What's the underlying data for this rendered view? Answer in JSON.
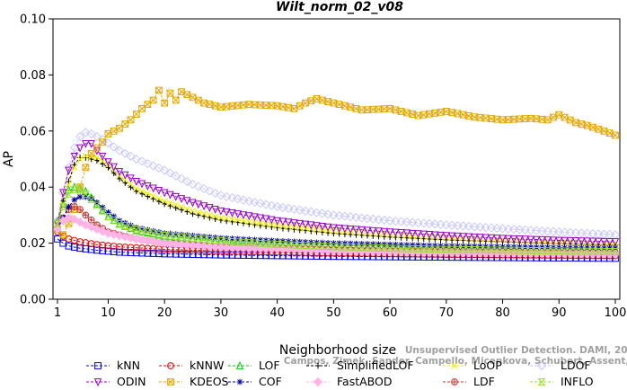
{
  "chart_data": {
    "type": "line",
    "title": "Wilt_norm_02_v08",
    "xlabel": "Neighborhood size",
    "ylabel": "AP",
    "xlim": [
      1,
      100
    ],
    "ylim": [
      0.0,
      0.1
    ],
    "xticks": [
      1,
      10,
      20,
      30,
      40,
      50,
      60,
      70,
      80,
      90,
      100
    ],
    "yticks": [
      "0.00",
      "0.02",
      "0.04",
      "0.06",
      "0.08",
      "0.10"
    ],
    "grid": false,
    "legend_position": "bottom",
    "x": [
      1,
      2,
      3,
      4,
      5,
      6,
      7,
      8,
      9,
      10,
      11,
      12,
      13,
      14,
      15,
      16,
      17,
      18,
      19,
      20,
      21,
      22,
      23,
      24,
      25,
      26,
      27,
      28,
      29,
      30,
      31,
      32,
      33,
      34,
      35,
      36,
      37,
      38,
      39,
      40,
      41,
      42,
      43,
      44,
      45,
      46,
      47,
      48,
      49,
      50,
      51,
      52,
      53,
      54,
      55,
      56,
      57,
      58,
      59,
      60,
      61,
      62,
      63,
      64,
      65,
      66,
      67,
      68,
      69,
      70,
      71,
      72,
      73,
      74,
      75,
      76,
      77,
      78,
      79,
      80,
      81,
      82,
      83,
      84,
      85,
      86,
      87,
      88,
      89,
      90,
      91,
      92,
      93,
      94,
      95,
      96,
      97,
      98,
      99,
      100
    ],
    "series": [
      {
        "name": "kNN",
        "color": "#0000ee",
        "marker": "square",
        "anchors": [
          [
            1,
            0.0215
          ],
          [
            2,
            0.02
          ],
          [
            3,
            0.019
          ],
          [
            5,
            0.0182
          ],
          [
            8,
            0.0175
          ],
          [
            12,
            0.0168
          ],
          [
            20,
            0.0162
          ],
          [
            30,
            0.0158
          ],
          [
            50,
            0.0153
          ],
          [
            70,
            0.015
          ],
          [
            100,
            0.0146
          ]
        ]
      },
      {
        "name": "kNNW",
        "color": "#ee0000",
        "marker": "circle",
        "anchors": [
          [
            1,
            0.024
          ],
          [
            2,
            0.0225
          ],
          [
            3,
            0.0215
          ],
          [
            5,
            0.0205
          ],
          [
            8,
            0.0195
          ],
          [
            12,
            0.0187
          ],
          [
            20,
            0.0178
          ],
          [
            30,
            0.0172
          ],
          [
            50,
            0.0165
          ],
          [
            70,
            0.016
          ],
          [
            100,
            0.0155
          ]
        ]
      },
      {
        "name": "LOF",
        "color": "#00cc00",
        "marker": "triangle",
        "anchors": [
          [
            1,
            0.028
          ],
          [
            2,
            0.034
          ],
          [
            3,
            0.039
          ],
          [
            4,
            0.04
          ],
          [
            5,
            0.0395
          ],
          [
            6,
            0.0385
          ],
          [
            8,
            0.034
          ],
          [
            10,
            0.0295
          ],
          [
            12,
            0.0268
          ],
          [
            15,
            0.0245
          ],
          [
            20,
            0.0225
          ],
          [
            30,
            0.0205
          ],
          [
            40,
            0.0193
          ],
          [
            50,
            0.0185
          ],
          [
            60,
            0.018
          ],
          [
            70,
            0.0176
          ],
          [
            80,
            0.0173
          ],
          [
            90,
            0.017
          ],
          [
            100,
            0.0168
          ]
        ]
      },
      {
        "name": "SimplifiedLOF",
        "color": "#000000",
        "marker": "plus",
        "anchors": [
          [
            1,
            0.026
          ],
          [
            2,
            0.035
          ],
          [
            3,
            0.042
          ],
          [
            4,
            0.048
          ],
          [
            5,
            0.0505
          ],
          [
            6,
            0.0505
          ],
          [
            8,
            0.0495
          ],
          [
            10,
            0.047
          ],
          [
            12,
            0.043
          ],
          [
            15,
            0.0385
          ],
          [
            20,
            0.034
          ],
          [
            25,
            0.0305
          ],
          [
            30,
            0.0282
          ],
          [
            40,
            0.0255
          ],
          [
            50,
            0.0235
          ],
          [
            60,
            0.0222
          ],
          [
            70,
            0.0212
          ],
          [
            80,
            0.0205
          ],
          [
            90,
            0.0198
          ],
          [
            100,
            0.0193
          ]
        ]
      },
      {
        "name": "LoOP",
        "color": "#eeee00",
        "marker": "x",
        "anchors": [
          [
            1,
            0.026
          ],
          [
            2,
            0.034
          ],
          [
            3,
            0.041
          ],
          [
            4,
            0.047
          ],
          [
            5,
            0.05
          ],
          [
            6,
            0.051
          ],
          [
            8,
            0.0505
          ],
          [
            10,
            0.048
          ],
          [
            12,
            0.044
          ],
          [
            15,
            0.0395
          ],
          [
            20,
            0.035
          ],
          [
            25,
            0.0315
          ],
          [
            30,
            0.029
          ],
          [
            40,
            0.0262
          ],
          [
            50,
            0.0243
          ],
          [
            60,
            0.023
          ],
          [
            70,
            0.022
          ],
          [
            80,
            0.0212
          ],
          [
            90,
            0.0206
          ],
          [
            100,
            0.02
          ]
        ]
      },
      {
        "name": "LDOF",
        "color": "#c8c8ff",
        "marker": "diamond",
        "anchors": [
          [
            1,
            0.028
          ],
          [
            2,
            0.038
          ],
          [
            3,
            0.047
          ],
          [
            4,
            0.054
          ],
          [
            5,
            0.058
          ],
          [
            6,
            0.0595
          ],
          [
            7,
            0.059
          ],
          [
            9,
            0.057
          ],
          [
            12,
            0.053
          ],
          [
            15,
            0.05
          ],
          [
            20,
            0.046
          ],
          [
            25,
            0.041
          ],
          [
            30,
            0.037
          ],
          [
            40,
            0.033
          ],
          [
            50,
            0.03
          ],
          [
            60,
            0.028
          ],
          [
            70,
            0.0265
          ],
          [
            80,
            0.0252
          ],
          [
            90,
            0.024
          ],
          [
            100,
            0.023
          ]
        ]
      },
      {
        "name": "ODIN",
        "color": "#9900cc",
        "marker": "triangle-down",
        "anchors": [
          [
            1,
            0.027
          ],
          [
            2,
            0.038
          ],
          [
            3,
            0.046
          ],
          [
            4,
            0.051
          ],
          [
            5,
            0.054
          ],
          [
            6,
            0.0555
          ],
          [
            7,
            0.0555
          ],
          [
            8,
            0.053
          ],
          [
            10,
            0.049
          ],
          [
            12,
            0.0455
          ],
          [
            15,
            0.042
          ],
          [
            20,
            0.038
          ],
          [
            25,
            0.0345
          ],
          [
            30,
            0.0315
          ],
          [
            40,
            0.028
          ],
          [
            50,
            0.0255
          ],
          [
            60,
            0.024
          ],
          [
            70,
            0.0227
          ],
          [
            80,
            0.0217
          ],
          [
            90,
            0.021
          ],
          [
            100,
            0.0205
          ]
        ]
      },
      {
        "name": "KDEOS",
        "color": "#e6a800",
        "marker": "boxx",
        "anchors": [
          [
            1,
            0.025
          ],
          [
            2,
            0.023
          ],
          [
            3,
            0.027
          ],
          [
            4,
            0.032
          ],
          [
            5,
            0.04
          ],
          [
            6,
            0.047
          ],
          [
            7,
            0.052
          ],
          [
            9,
            0.056
          ],
          [
            10,
            0.059
          ],
          [
            12,
            0.061
          ],
          [
            14,
            0.064
          ],
          [
            16,
            0.068
          ],
          [
            18,
            0.071
          ],
          [
            19,
            0.0745
          ],
          [
            20,
            0.07
          ],
          [
            21,
            0.0735
          ],
          [
            22,
            0.071
          ],
          [
            23,
            0.074
          ],
          [
            25,
            0.072
          ],
          [
            27,
            0.07
          ],
          [
            30,
            0.0685
          ],
          [
            35,
            0.0695
          ],
          [
            40,
            0.069
          ],
          [
            43,
            0.068
          ],
          [
            45,
            0.07
          ],
          [
            47,
            0.0715
          ],
          [
            50,
            0.07
          ],
          [
            55,
            0.0675
          ],
          [
            60,
            0.068
          ],
          [
            65,
            0.0655
          ],
          [
            70,
            0.067
          ],
          [
            75,
            0.065
          ],
          [
            80,
            0.064
          ],
          [
            85,
            0.0645
          ],
          [
            88,
            0.064
          ],
          [
            90,
            0.0658
          ],
          [
            93,
            0.063
          ],
          [
            95,
            0.062
          ],
          [
            98,
            0.06
          ],
          [
            100,
            0.0585
          ]
        ]
      },
      {
        "name": "LDF",
        "color": "#cc3333",
        "marker": "circle-plus",
        "anchors": [
          [
            1,
            0.025
          ],
          [
            2,
            0.029
          ],
          [
            3,
            0.032
          ],
          [
            4,
            0.033
          ],
          [
            5,
            0.032
          ],
          [
            6,
            0.03
          ],
          [
            8,
            0.0265
          ],
          [
            10,
            0.024
          ],
          [
            15,
            0.0215
          ],
          [
            20,
            0.02
          ],
          [
            30,
            0.0188
          ],
          [
            50,
            0.0178
          ],
          [
            70,
            0.0172
          ],
          [
            100,
            0.0165
          ]
        ]
      },
      {
        "name": "COF",
        "color": "#000099",
        "marker": "asterisk",
        "anchors": [
          [
            1,
            0.025
          ],
          [
            2,
            0.029
          ],
          [
            3,
            0.033
          ],
          [
            4,
            0.0355
          ],
          [
            5,
            0.0365
          ],
          [
            6,
            0.0365
          ],
          [
            7,
            0.036
          ],
          [
            8,
            0.0345
          ],
          [
            10,
            0.031
          ],
          [
            12,
            0.028
          ],
          [
            15,
            0.0255
          ],
          [
            20,
            0.0235
          ],
          [
            30,
            0.0218
          ],
          [
            40,
            0.0208
          ],
          [
            50,
            0.02
          ],
          [
            60,
            0.0195
          ],
          [
            70,
            0.019
          ],
          [
            80,
            0.0187
          ],
          [
            90,
            0.0184
          ],
          [
            100,
            0.0182
          ]
        ]
      },
      {
        "name": "FastABOD",
        "color": "#ffb3e6",
        "marker": "diamond-filled",
        "anchors": [
          [
            1,
            0.025
          ],
          [
            2,
            0.028
          ],
          [
            3,
            0.029
          ],
          [
            4,
            0.0285
          ],
          [
            5,
            0.0275
          ],
          [
            6,
            0.0265
          ],
          [
            8,
            0.025
          ],
          [
            10,
            0.0235
          ],
          [
            15,
            0.0215
          ],
          [
            20,
            0.02
          ],
          [
            30,
            0.0185
          ],
          [
            50,
            0.0173
          ],
          [
            70,
            0.0167
          ],
          [
            100,
            0.0162
          ]
        ]
      },
      {
        "name": "INFLO",
        "color": "#99dd33",
        "marker": "hourglass",
        "anchors": [
          [
            1,
            0.027
          ],
          [
            2,
            0.033
          ],
          [
            3,
            0.0375
          ],
          [
            4,
            0.039
          ],
          [
            5,
            0.039
          ],
          [
            6,
            0.0375
          ],
          [
            8,
            0.0335
          ],
          [
            10,
            0.0295
          ],
          [
            12,
            0.027
          ],
          [
            15,
            0.0248
          ],
          [
            20,
            0.0228
          ],
          [
            30,
            0.0208
          ],
          [
            40,
            0.0196
          ],
          [
            50,
            0.0188
          ],
          [
            60,
            0.0182
          ],
          [
            70,
            0.0178
          ],
          [
            80,
            0.0175
          ],
          [
            90,
            0.0172
          ],
          [
            100,
            0.017
          ]
        ]
      }
    ]
  },
  "legend_rows": [
    [
      "kNN",
      "kNNW",
      "LOF",
      "SimplifiedLOF",
      "LoOP",
      "LDOF"
    ],
    [
      "ODIN",
      "KDEOS",
      "COF",
      "FastABOD",
      "LDF",
      "INFLO"
    ]
  ],
  "watermark": {
    "line1": "Unsupervised Outlier Detection. DAMI, 2015.",
    "line2": "Campos, Zimek, Sander, Campello, Micenkova, Schubert, Assent, Houle"
  }
}
